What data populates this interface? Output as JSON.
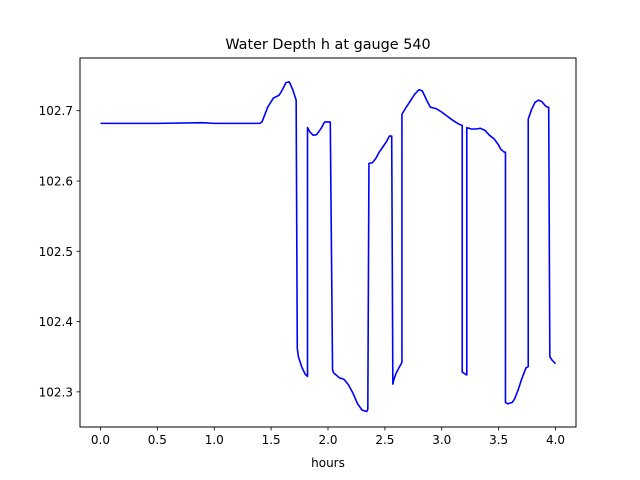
{
  "chart_data": {
    "type": "line",
    "title": "Water Depth h at gauge 540",
    "xlabel": "hours",
    "ylabel": "",
    "xlim": [
      -0.18,
      4.18
    ],
    "ylim": [
      102.25,
      102.775
    ],
    "xticks": [
      0.0,
      0.5,
      1.0,
      1.5,
      2.0,
      2.5,
      3.0,
      3.5,
      4.0
    ],
    "xtick_labels": [
      "0.0",
      "0.5",
      "1.0",
      "1.5",
      "2.0",
      "2.5",
      "3.0",
      "3.5",
      "4.0"
    ],
    "yticks": [
      102.3,
      102.4,
      102.5,
      102.6,
      102.7
    ],
    "ytick_labels": [
      "102.3",
      "102.4",
      "102.5",
      "102.6",
      "102.7"
    ],
    "grid": false,
    "colors": {
      "line": "#0000ff",
      "axes": "#000000",
      "background": "#ffffff"
    },
    "series": [
      {
        "name": "",
        "x": [
          0.0,
          0.2,
          0.5,
          0.9,
          1.0,
          1.2,
          1.4,
          1.42,
          1.47,
          1.52,
          1.57,
          1.6,
          1.63,
          1.66,
          1.69,
          1.72,
          1.73,
          1.74,
          1.77,
          1.8,
          1.82,
          1.82,
          1.84,
          1.87,
          1.9,
          1.94,
          1.97,
          2.0,
          2.02,
          2.04,
          2.05,
          2.1,
          2.14,
          2.18,
          2.22,
          2.26,
          2.3,
          2.34,
          2.35,
          2.36,
          2.39,
          2.42,
          2.45,
          2.48,
          2.51,
          2.54,
          2.56,
          2.57,
          2.58,
          2.6,
          2.63,
          2.65,
          2.65,
          2.68,
          2.72,
          2.76,
          2.8,
          2.83,
          2.87,
          2.9,
          2.95,
          3.0,
          3.05,
          3.1,
          3.15,
          3.18,
          3.18,
          3.22,
          3.22,
          3.26,
          3.3,
          3.34,
          3.38,
          3.42,
          3.46,
          3.5,
          3.52,
          3.55,
          3.56,
          3.56,
          3.58,
          3.62,
          3.64,
          3.67,
          3.7,
          3.74,
          3.76,
          3.76,
          3.79,
          3.82,
          3.85,
          3.88,
          3.91,
          3.94,
          3.94,
          3.95,
          3.97,
          4.0
        ],
        "y": [
          102.682,
          102.682,
          102.682,
          102.683,
          102.682,
          102.682,
          102.682,
          102.684,
          102.705,
          102.718,
          102.722,
          102.73,
          102.74,
          102.741,
          102.73,
          102.715,
          102.362,
          102.35,
          102.335,
          102.325,
          102.322,
          102.676,
          102.67,
          102.665,
          102.666,
          102.675,
          102.684,
          102.684,
          102.684,
          102.331,
          102.327,
          102.32,
          102.318,
          102.31,
          102.298,
          102.283,
          102.274,
          102.272,
          102.275,
          102.625,
          102.626,
          102.632,
          102.641,
          102.648,
          102.655,
          102.664,
          102.664,
          102.311,
          102.318,
          102.327,
          102.336,
          102.342,
          102.695,
          102.703,
          102.713,
          102.723,
          102.73,
          102.728,
          102.714,
          102.705,
          102.703,
          102.698,
          102.692,
          102.686,
          102.681,
          102.679,
          102.328,
          102.324,
          102.676,
          102.674,
          102.674,
          102.675,
          102.672,
          102.665,
          102.66,
          102.651,
          102.645,
          102.641,
          102.641,
          102.285,
          102.283,
          102.285,
          102.29,
          102.302,
          102.317,
          102.334,
          102.336,
          102.688,
          102.702,
          102.712,
          102.715,
          102.713,
          102.707,
          102.704,
          102.705,
          102.35,
          102.345,
          102.34
        ]
      }
    ]
  }
}
